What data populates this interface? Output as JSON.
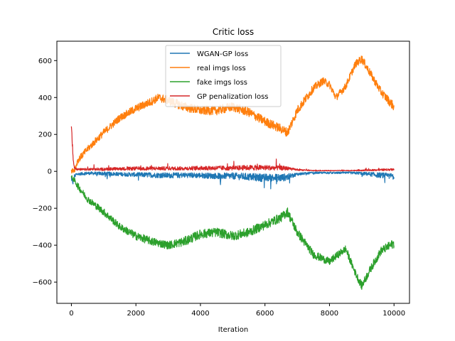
{
  "chart_data": {
    "type": "line",
    "title": "Critic loss",
    "xlabel": "Iteration",
    "ylabel": "",
    "xlim": [
      -450,
      10480
    ],
    "ylim": [
      -715,
      705
    ],
    "x_ticks": [
      0,
      2000,
      4000,
      6000,
      8000,
      10000
    ],
    "y_ticks": [
      -600,
      -400,
      -200,
      0,
      200,
      400,
      600
    ],
    "grid": false,
    "legend_position": "top-center",
    "series": [
      {
        "name": "WGAN-GP loss",
        "color": "#1f77b4",
        "x": [
          0,
          50,
          100,
          200,
          500,
          1000,
          1500,
          2000,
          2500,
          3000,
          3500,
          4000,
          4500,
          5000,
          5500,
          6000,
          6500,
          6700,
          7000,
          7500,
          8000,
          8500,
          9000,
          9500,
          10000
        ],
        "y": [
          -30,
          -60,
          -20,
          -15,
          -10,
          -12,
          -15,
          -18,
          -20,
          -22,
          -20,
          -22,
          -25,
          -25,
          -30,
          -35,
          -35,
          -30,
          -15,
          -8,
          -8,
          -8,
          -10,
          -20,
          -25
        ],
        "noise": [
          10,
          15,
          10,
          8,
          8,
          10,
          10,
          12,
          14,
          15,
          14,
          15,
          16,
          18,
          20,
          22,
          22,
          18,
          8,
          5,
          5,
          5,
          8,
          14,
          15
        ]
      },
      {
        "name": "real imgs loss",
        "color": "#ff7f0e",
        "x": [
          0,
          100,
          200,
          500,
          1000,
          1500,
          2000,
          2500,
          2700,
          3000,
          3500,
          4000,
          4500,
          5000,
          5500,
          6000,
          6500,
          6700,
          7000,
          7500,
          7800,
          8000,
          8200,
          8500,
          8800,
          9000,
          9300,
          9600,
          10000
        ],
        "y": [
          0,
          10,
          60,
          120,
          210,
          290,
          340,
          380,
          400,
          385,
          350,
          330,
          330,
          350,
          320,
          270,
          230,
          210,
          330,
          450,
          490,
          470,
          400,
          460,
          580,
          610,
          520,
          430,
          350
        ],
        "noise": [
          10,
          15,
          18,
          18,
          20,
          20,
          22,
          22,
          22,
          25,
          25,
          25,
          25,
          25,
          25,
          25,
          25,
          25,
          25,
          22,
          20,
          20,
          20,
          20,
          20,
          22,
          22,
          22,
          25
        ]
      },
      {
        "name": "fake imgs loss",
        "color": "#2ca02c",
        "x": [
          0,
          100,
          200,
          500,
          1000,
          1500,
          2000,
          2500,
          3000,
          3500,
          4000,
          4500,
          5000,
          5500,
          6000,
          6500,
          6700,
          7000,
          7500,
          8000,
          8200,
          8500,
          8800,
          9000,
          9300,
          9600,
          10000
        ],
        "y": [
          -30,
          -50,
          -80,
          -150,
          -220,
          -300,
          -350,
          -380,
          -400,
          -380,
          -340,
          -330,
          -350,
          -330,
          -290,
          -250,
          -220,
          -330,
          -450,
          -490,
          -460,
          -420,
          -550,
          -620,
          -520,
          -430,
          -390
        ],
        "noise": [
          10,
          15,
          18,
          18,
          20,
          20,
          22,
          22,
          22,
          25,
          25,
          25,
          25,
          25,
          25,
          25,
          25,
          25,
          22,
          20,
          20,
          20,
          20,
          22,
          22,
          22,
          25
        ]
      },
      {
        "name": "GP penalization loss",
        "color": "#d62728",
        "x": [
          0,
          30,
          60,
          100,
          200,
          500,
          1000,
          1500,
          2000,
          2500,
          3000,
          3500,
          4000,
          4500,
          5000,
          5500,
          6000,
          6500,
          6700,
          7000,
          7500,
          8000,
          8500,
          9000,
          9500,
          10000
        ],
        "y": [
          250,
          150,
          50,
          20,
          10,
          10,
          12,
          14,
          15,
          16,
          16,
          16,
          18,
          18,
          18,
          20,
          20,
          18,
          16,
          8,
          4,
          4,
          4,
          5,
          8,
          10
        ],
        "noise": [
          10,
          20,
          15,
          8,
          6,
          6,
          8,
          8,
          10,
          10,
          10,
          10,
          12,
          12,
          12,
          14,
          14,
          12,
          10,
          4,
          2,
          2,
          2,
          3,
          5,
          6
        ]
      }
    ]
  }
}
